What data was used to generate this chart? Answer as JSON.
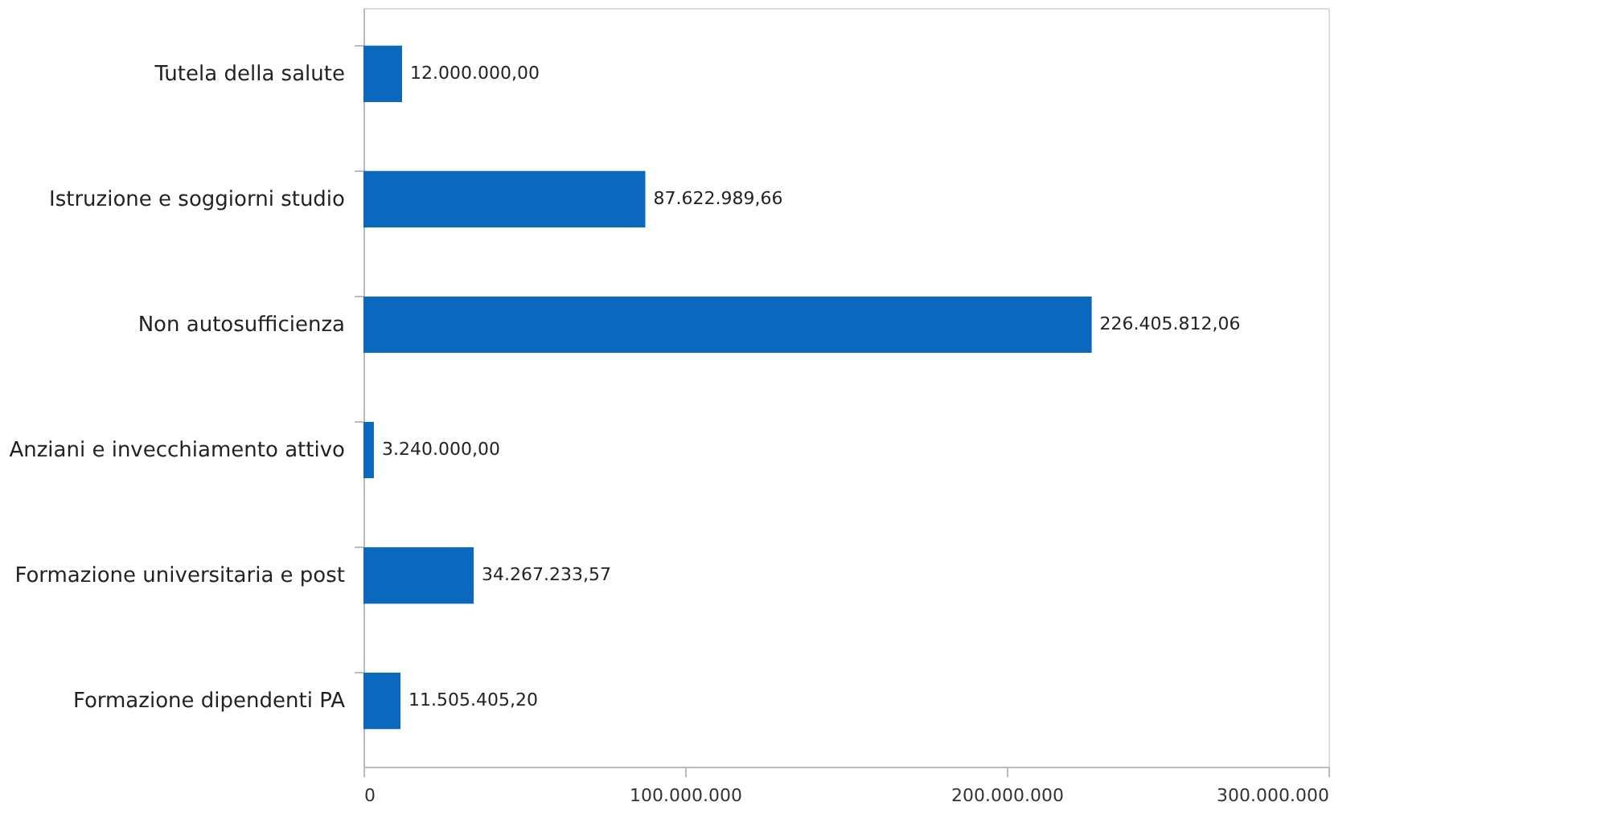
{
  "chart_data": {
    "type": "bar",
    "orientation": "horizontal",
    "categories": [
      "Tutela della salute",
      "Istruzione e soggiorni studio",
      "Non autosufficienza",
      "Anziani e invecchiamento attivo",
      "Formazione universitaria e post",
      "Formazione dipendenti PA"
    ],
    "values": [
      12000000.0,
      87622989.66,
      226405812.06,
      3240000.0,
      34267233.57,
      11505405.2
    ],
    "value_labels": [
      "12.000.000,00",
      "87.622.989,66",
      "226.405.812,06",
      "3.240.000,00",
      "34.267.233,57",
      "11.505.405,20"
    ],
    "color": "#0b68bf",
    "xlim": [
      0,
      300000000
    ],
    "xticks": [
      0,
      {
        "value": 100000000,
        "label": "100.000.000"
      },
      {
        "value": 200000000,
        "label": "200.000.000"
      },
      {
        "value": 300000000,
        "label": "300.000.000"
      }
    ],
    "grid": false
  }
}
